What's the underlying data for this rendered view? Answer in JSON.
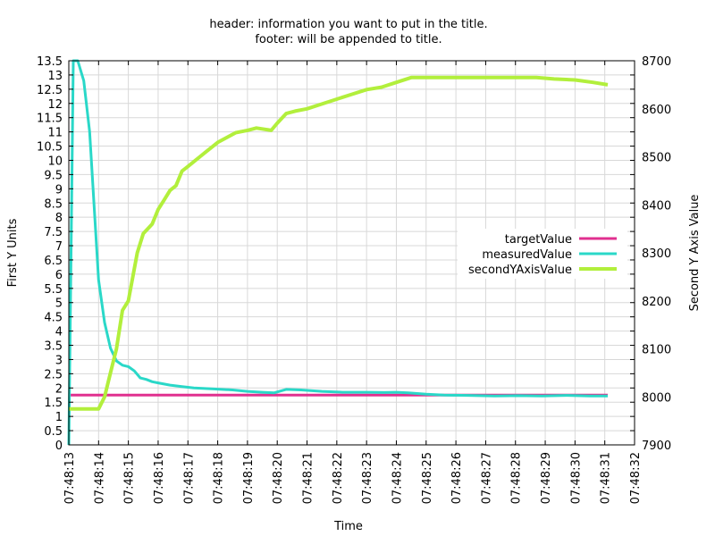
{
  "chart_data": {
    "type": "line",
    "title_lines": [
      "header: information you want to put in the title.",
      "footer: will be appended to title."
    ],
    "xlabel": "Time",
    "ylabel": "First Y Units",
    "y2label": "Second Y Axis Value",
    "x_tick_labels": [
      "07:48:13",
      "07:48:14",
      "07:48:15",
      "07:48:16",
      "07:48:17",
      "07:48:18",
      "07:48:19",
      "07:48:20",
      "07:48:21",
      "07:48:22",
      "07:48:23",
      "07:48:24",
      "07:48:25",
      "07:48:26",
      "07:48:27",
      "07:48:28",
      "07:48:29",
      "07:48:30",
      "07:48:31",
      "07:48:32"
    ],
    "x_range": [
      0,
      19
    ],
    "y_range": [
      0,
      13.5
    ],
    "y_ticks": [
      0,
      0.5,
      1,
      1.5,
      2,
      2.5,
      3,
      3.5,
      4,
      4.5,
      5,
      5.5,
      6,
      6.5,
      7,
      7.5,
      8,
      8.5,
      9,
      9.5,
      10,
      10.5,
      11,
      11.5,
      12,
      12.5,
      13,
      13.5
    ],
    "y2_range": [
      7900,
      8700
    ],
    "y2_ticks": [
      7900,
      8000,
      8100,
      8200,
      8300,
      8400,
      8500,
      8600,
      8700
    ],
    "grid": true,
    "legend_position": "right",
    "series": [
      {
        "name": "targetValue",
        "axis": "y1",
        "color": "#e0308f",
        "points": [
          [
            0,
            1.75
          ],
          [
            18.1,
            1.75
          ]
        ]
      },
      {
        "name": "measuredValue",
        "axis": "y1",
        "color": "#2ad8c8",
        "points": [
          [
            0,
            0
          ],
          [
            0.15,
            13.5
          ],
          [
            0.3,
            13.5
          ],
          [
            0.5,
            12.8
          ],
          [
            0.7,
            11.0
          ],
          [
            1.0,
            5.8
          ],
          [
            1.2,
            4.3
          ],
          [
            1.4,
            3.4
          ],
          [
            1.6,
            2.95
          ],
          [
            1.8,
            2.8
          ],
          [
            2.0,
            2.75
          ],
          [
            2.2,
            2.6
          ],
          [
            2.4,
            2.35
          ],
          [
            2.6,
            2.3
          ],
          [
            2.8,
            2.22
          ],
          [
            3.0,
            2.18
          ],
          [
            3.4,
            2.1
          ],
          [
            3.8,
            2.05
          ],
          [
            4.2,
            2.0
          ],
          [
            4.8,
            1.97
          ],
          [
            5.5,
            1.93
          ],
          [
            6.0,
            1.88
          ],
          [
            6.5,
            1.85
          ],
          [
            6.9,
            1.83
          ],
          [
            7.3,
            1.95
          ],
          [
            7.8,
            1.93
          ],
          [
            8.5,
            1.88
          ],
          [
            9.2,
            1.85
          ],
          [
            10.0,
            1.85
          ],
          [
            10.6,
            1.84
          ],
          [
            11.0,
            1.85
          ],
          [
            11.4,
            1.83
          ],
          [
            12.0,
            1.78
          ],
          [
            12.6,
            1.75
          ],
          [
            13.4,
            1.74
          ],
          [
            14.3,
            1.72
          ],
          [
            15.1,
            1.73
          ],
          [
            15.9,
            1.72
          ],
          [
            16.7,
            1.74
          ],
          [
            17.5,
            1.72
          ],
          [
            18.1,
            1.72
          ]
        ]
      },
      {
        "name": "secondYAxisValue",
        "axis": "y2",
        "color": "#b2ef3c",
        "points": [
          [
            0,
            7975
          ],
          [
            0.5,
            7975
          ],
          [
            1.0,
            7975
          ],
          [
            1.2,
            8000
          ],
          [
            1.4,
            8050
          ],
          [
            1.6,
            8100
          ],
          [
            1.8,
            8180
          ],
          [
            2.0,
            8200
          ],
          [
            2.3,
            8300
          ],
          [
            2.5,
            8340
          ],
          [
            2.8,
            8360
          ],
          [
            3.0,
            8390
          ],
          [
            3.2,
            8410
          ],
          [
            3.4,
            8430
          ],
          [
            3.6,
            8440
          ],
          [
            3.8,
            8470
          ],
          [
            4.0,
            8480
          ],
          [
            4.2,
            8490
          ],
          [
            4.4,
            8500
          ],
          [
            4.6,
            8510
          ],
          [
            4.8,
            8520
          ],
          [
            5.0,
            8530
          ],
          [
            5.3,
            8540
          ],
          [
            5.6,
            8550
          ],
          [
            6.0,
            8555
          ],
          [
            6.3,
            8560
          ],
          [
            6.8,
            8555
          ],
          [
            7.0,
            8570
          ],
          [
            7.3,
            8590
          ],
          [
            7.6,
            8595
          ],
          [
            8.0,
            8600
          ],
          [
            8.5,
            8610
          ],
          [
            9.0,
            8620
          ],
          [
            9.5,
            8630
          ],
          [
            10.0,
            8640
          ],
          [
            10.5,
            8645
          ],
          [
            11.0,
            8655
          ],
          [
            11.5,
            8665
          ],
          [
            12.0,
            8665
          ],
          [
            13.0,
            8665
          ],
          [
            14.0,
            8665
          ],
          [
            15.0,
            8665
          ],
          [
            15.7,
            8665
          ],
          [
            16.3,
            8662
          ],
          [
            17.0,
            8660
          ],
          [
            17.6,
            8655
          ],
          [
            18.1,
            8650
          ]
        ]
      }
    ]
  }
}
